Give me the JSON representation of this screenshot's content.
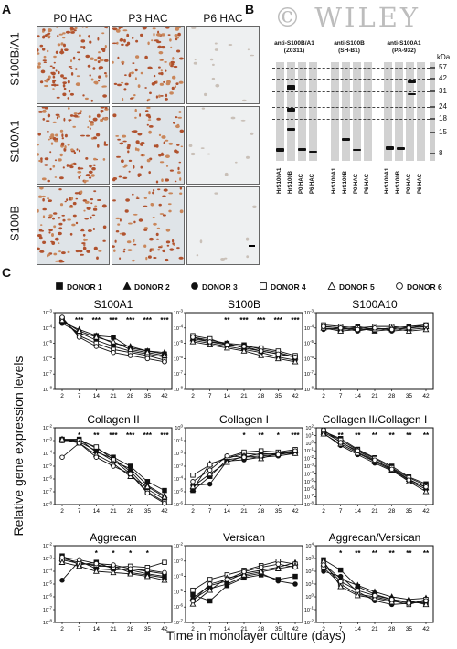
{
  "figure": {
    "panel_a": "A",
    "panel_b": "B",
    "panel_c": "C",
    "watermark": "© WILEY"
  },
  "panel_a": {
    "columns": [
      "P0 HAC",
      "P3 HAC",
      "P6 HAC"
    ],
    "rows": [
      "S100B/A1",
      "S100A1",
      "S100B"
    ],
    "stain_density": [
      [
        0.9,
        0.8,
        0.1
      ],
      [
        0.85,
        0.6,
        0.08
      ],
      [
        0.7,
        0.55,
        0.06
      ]
    ]
  },
  "panel_b": {
    "antibodies": [
      {
        "name": "anti-S100B/A1",
        "clone": "(Z0311)",
        "lanes": [
          "HrS100A1",
          "HrS100B",
          "P0 HAC",
          "P6 HAC"
        ]
      },
      {
        "name": "anti-S100B",
        "clone": "(SH-B1)",
        "lanes": [
          "HrS100A1",
          "HrS100B",
          "P0 HAC",
          "P6 HAC"
        ]
      },
      {
        "name": "anti-S100A1",
        "clone": "(PA-932)",
        "lanes": [
          "HrS100A1",
          "HrS100B",
          "P0 HAC",
          "P6 HAC"
        ]
      }
    ],
    "kda_label": "kDa",
    "markers": [
      "57",
      "42",
      "31",
      "24",
      "18",
      "15",
      "8"
    ]
  },
  "panel_c": {
    "ylabel": "Relative gene expression levels",
    "xlabel": "Time in monolayer culture (days)",
    "legend": [
      "DONOR 1",
      "DONOR 2",
      "DONOR 3",
      "DONOR 4",
      "DONOR 5",
      "DONOR 6"
    ]
  },
  "chart_data": [
    {
      "type": "line",
      "title": "S100A1",
      "x": [
        2,
        7,
        14,
        21,
        28,
        35,
        42
      ],
      "ylim_exp": [
        -8,
        -3
      ],
      "series": [
        {
          "name": "DONOR 1",
          "values": [
            -3.5,
            -4.4,
            -4.5,
            -4.6,
            -5.3,
            -5.5,
            -5.7
          ]
        },
        {
          "name": "DONOR 2",
          "values": [
            -3.6,
            -4.1,
            -4.5,
            -5.0,
            -5.2,
            -5.5,
            -5.6
          ]
        },
        {
          "name": "DONOR 3",
          "values": [
            -3.7,
            -4.3,
            -4.8,
            -5.2,
            -5.5,
            -5.7,
            -5.9
          ]
        },
        {
          "name": "DONOR 4",
          "values": [
            -3.4,
            -4.5,
            -5.0,
            -5.4,
            -5.6,
            -5.8,
            -6.1
          ]
        },
        {
          "name": "DONOR 5",
          "values": [
            -3.5,
            -4.2,
            -4.6,
            -4.9,
            -5.4,
            -5.6,
            -5.8
          ]
        },
        {
          "name": "DONOR 6",
          "values": [
            -3.3,
            -4.6,
            -5.2,
            -5.6,
            -5.8,
            -6.0,
            -6.2
          ]
        }
      ],
      "stars": [
        "",
        "***",
        "***",
        "***",
        "***",
        "***",
        "***"
      ]
    },
    {
      "type": "line",
      "title": "S100B",
      "x": [
        2,
        7,
        14,
        21,
        28,
        35,
        42
      ],
      "ylim_exp": [
        -8,
        -3
      ],
      "series": [
        {
          "name": "DONOR 1",
          "values": [
            -4.6,
            -4.8,
            -5.0,
            -5.1,
            -5.4,
            -5.6,
            -5.9
          ]
        },
        {
          "name": "DONOR 2",
          "values": [
            -4.7,
            -4.9,
            -5.0,
            -5.3,
            -5.5,
            -5.7,
            -5.9
          ]
        },
        {
          "name": "DONOR 3",
          "values": [
            -4.8,
            -5.0,
            -5.2,
            -5.4,
            -5.6,
            -5.9,
            -6.1
          ]
        },
        {
          "name": "DONOR 4",
          "values": [
            -4.5,
            -4.7,
            -5.1,
            -5.2,
            -5.3,
            -5.5,
            -5.8
          ]
        },
        {
          "name": "DONOR 5",
          "values": [
            -4.9,
            -5.1,
            -5.3,
            -5.5,
            -5.8,
            -6.0,
            -6.2
          ]
        },
        {
          "name": "DONOR 6",
          "values": [
            -4.6,
            -4.9,
            -5.1,
            -5.2,
            -5.5,
            -5.7,
            -5.9
          ]
        }
      ],
      "stars": [
        "",
        "",
        "**",
        "***",
        "***",
        "***",
        "***"
      ]
    },
    {
      "type": "line",
      "title": "S100A10",
      "x": [
        2,
        7,
        14,
        21,
        28,
        35,
        42
      ],
      "ylim_exp": [
        -8,
        -3
      ],
      "series": [
        {
          "name": "DONOR 1",
          "values": [
            -3.9,
            -4.0,
            -3.9,
            -4.1,
            -4.0,
            -3.9,
            -3.8
          ]
        },
        {
          "name": "DONOR 2",
          "values": [
            -4.0,
            -4.1,
            -4.0,
            -4.2,
            -4.1,
            -4.0,
            -3.9
          ]
        },
        {
          "name": "DONOR 3",
          "values": [
            -4.1,
            -4.0,
            -4.2,
            -4.0,
            -4.2,
            -4.1,
            -4.0
          ]
        },
        {
          "name": "DONOR 4",
          "values": [
            -3.8,
            -3.9,
            -4.0,
            -3.9,
            -3.9,
            -4.0,
            -3.9
          ]
        },
        {
          "name": "DONOR 5",
          "values": [
            -4.0,
            -4.2,
            -4.1,
            -4.1,
            -4.0,
            -4.2,
            -4.1
          ]
        },
        {
          "name": "DONOR 6",
          "values": [
            -3.9,
            -4.0,
            -4.1,
            -4.0,
            -4.1,
            -4.0,
            -3.8
          ]
        }
      ],
      "stars": [
        "",
        "",
        "",
        "",
        "",
        "",
        ""
      ]
    },
    {
      "type": "line",
      "title": "Collagen II",
      "x": [
        2,
        7,
        14,
        21,
        28,
        35,
        42
      ],
      "ylim_exp": [
        -8,
        -2
      ],
      "series": [
        {
          "name": "DONOR 1",
          "values": [
            -2.9,
            -2.9,
            -3.6,
            -4.3,
            -5.0,
            -6.2,
            -6.9
          ]
        },
        {
          "name": "DONOR 2",
          "values": [
            -2.9,
            -3.1,
            -3.8,
            -4.6,
            -5.2,
            -6.5,
            -7.3
          ]
        },
        {
          "name": "DONOR 3",
          "values": [
            -3.0,
            -2.9,
            -3.9,
            -4.4,
            -5.4,
            -6.8,
            -7.6
          ]
        },
        {
          "name": "DONOR 4",
          "values": [
            -3.0,
            -3.0,
            -3.5,
            -4.5,
            -5.6,
            -7.0,
            -7.8
          ]
        },
        {
          "name": "DONOR 5",
          "values": [
            -2.9,
            -3.2,
            -4.1,
            -4.8,
            -5.8,
            -6.6,
            -7.4
          ]
        },
        {
          "name": "DONOR 6",
          "values": [
            -4.3,
            -3.2,
            -4.3,
            -5.0,
            -5.6,
            -7.1,
            -7.9
          ]
        }
      ],
      "stars": [
        "",
        "*",
        "**",
        "***",
        "***",
        "***",
        "***"
      ]
    },
    {
      "type": "line",
      "title": "Collagen I",
      "x": [
        2,
        7,
        14,
        21,
        28,
        35,
        42
      ],
      "ylim_exp": [
        -6,
        0
      ],
      "series": [
        {
          "name": "DONOR 1",
          "values": [
            -4.9,
            -3.8,
            -2.5,
            -2.3,
            -2.0,
            -2.1,
            -1.9
          ]
        },
        {
          "name": "DONOR 2",
          "values": [
            -4.8,
            -2.8,
            -2.4,
            -2.0,
            -2.1,
            -2.0,
            -1.8
          ]
        },
        {
          "name": "DONOR 3",
          "values": [
            -4.5,
            -4.4,
            -2.6,
            -2.5,
            -2.3,
            -2.2,
            -2.0
          ]
        },
        {
          "name": "DONOR 4",
          "values": [
            -3.7,
            -2.9,
            -2.3,
            -1.9,
            -1.8,
            -1.9,
            -1.7
          ]
        },
        {
          "name": "DONOR 5",
          "values": [
            -4.6,
            -3.6,
            -2.7,
            -2.2,
            -2.4,
            -2.0,
            -2.0
          ]
        },
        {
          "name": "DONOR 6",
          "values": [
            -4.2,
            -3.3,
            -2.2,
            -2.3,
            -2.2,
            -2.1,
            -1.8
          ]
        }
      ],
      "stars": [
        "",
        "",
        "",
        "*",
        "**",
        "*",
        "***"
      ]
    },
    {
      "type": "line",
      "title": "Collagen II/Collagen I",
      "x": [
        2,
        7,
        14,
        21,
        28,
        35,
        42
      ],
      "ylim_exp": [
        -8,
        2
      ],
      "series": [
        {
          "name": "DONOR 1",
          "values": [
            1.5,
            0.6,
            -0.8,
            -1.9,
            -3.0,
            -4.4,
            -5.3
          ]
        },
        {
          "name": "DONOR 2",
          "values": [
            1.4,
            0.2,
            -1.2,
            -2.3,
            -3.3,
            -4.7,
            -5.8
          ]
        },
        {
          "name": "DONOR 3",
          "values": [
            1.3,
            -0.3,
            -1.5,
            -2.6,
            -3.6,
            -4.9,
            -6.0
          ]
        },
        {
          "name": "DONOR 4",
          "values": [
            1.6,
            0.4,
            -0.9,
            -2.0,
            -3.2,
            -4.5,
            -5.5
          ]
        },
        {
          "name": "DONOR 5",
          "values": [
            1.2,
            -0.1,
            -1.3,
            -2.4,
            -3.5,
            -5.0,
            -6.3
          ]
        },
        {
          "name": "DONOR 6",
          "values": [
            1.7,
            0.1,
            -1.0,
            -2.2,
            -3.4,
            -4.8,
            -5.7
          ]
        }
      ],
      "stars": [
        "",
        "**",
        "**",
        "**",
        "**",
        "**",
        "**"
      ]
    },
    {
      "type": "line",
      "title": "Aggrecan",
      "x": [
        2,
        7,
        14,
        21,
        28,
        35,
        42
      ],
      "ylim_exp": [
        -8,
        -2
      ],
      "series": [
        {
          "name": "DONOR 1",
          "values": [
            -2.8,
            -3.5,
            -3.3,
            -3.8,
            -3.9,
            -4.2,
            -4.4
          ]
        },
        {
          "name": "DONOR 2",
          "values": [
            -3.0,
            -3.3,
            -3.6,
            -3.6,
            -4.1,
            -4.3,
            -4.5
          ]
        },
        {
          "name": "DONOR 3",
          "values": [
            -4.7,
            -3.2,
            -3.8,
            -3.9,
            -3.8,
            -4.0,
            -4.2
          ]
        },
        {
          "name": "DONOR 4",
          "values": [
            -3.1,
            -3.4,
            -3.5,
            -3.7,
            -3.6,
            -3.7,
            -3.3
          ]
        },
        {
          "name": "DONOR 5",
          "values": [
            -3.3,
            -3.6,
            -4.0,
            -4.1,
            -4.2,
            -4.4,
            -4.7
          ]
        },
        {
          "name": "DONOR 6",
          "values": [
            -2.9,
            -3.1,
            -3.4,
            -3.5,
            -3.8,
            -3.9,
            -4.1
          ]
        }
      ],
      "stars": [
        "",
        "",
        "*",
        "*",
        "*",
        "*",
        ""
      ]
    },
    {
      "type": "line",
      "title": "Versican",
      "x": [
        2,
        7,
        14,
        21,
        28,
        35,
        42
      ],
      "ylim_exp": [
        -7,
        -2
      ],
      "series": [
        {
          "name": "DONOR 1",
          "values": [
            -5.2,
            -5.6,
            -4.6,
            -4.1,
            -3.9,
            -4.2,
            -4.0
          ]
        },
        {
          "name": "DONOR 2",
          "values": [
            -5.4,
            -4.6,
            -4.3,
            -3.8,
            -3.6,
            -3.4,
            -3.1
          ]
        },
        {
          "name": "DONOR 3",
          "values": [
            -5.5,
            -4.8,
            -4.5,
            -4.0,
            -3.8,
            -4.3,
            -4.5
          ]
        },
        {
          "name": "DONOR 4",
          "values": [
            -4.9,
            -4.2,
            -3.9,
            -3.6,
            -3.3,
            -3.0,
            -3.2
          ]
        },
        {
          "name": "DONOR 5",
          "values": [
            -5.8,
            -4.9,
            -4.1,
            -3.9,
            -3.7,
            -3.5,
            -3.3
          ]
        },
        {
          "name": "DONOR 6",
          "values": [
            -5.6,
            -4.5,
            -4.2,
            -3.7,
            -3.4,
            -3.2,
            -3.4
          ]
        }
      ],
      "stars": [
        "",
        "",
        "",
        "",
        "",
        "",
        ""
      ]
    },
    {
      "type": "line",
      "title": "Aggrecan/Versican",
      "x": [
        2,
        7,
        14,
        21,
        28,
        35,
        42
      ],
      "ylim_exp": [
        -2,
        4
      ],
      "series": [
        {
          "name": "DONOR 1",
          "values": [
            2.9,
            2.1,
            0.8,
            0.2,
            -0.2,
            -0.4,
            -0.5
          ]
        },
        {
          "name": "DONOR 2",
          "values": [
            2.6,
            1.4,
            0.9,
            0.4,
            0.0,
            -0.2,
            -0.1
          ]
        },
        {
          "name": "DONOR 3",
          "values": [
            2.0,
            1.6,
            0.4,
            -0.3,
            -0.6,
            -0.5,
            -0.4
          ]
        },
        {
          "name": "DONOR 4",
          "values": [
            2.3,
            1.0,
            0.2,
            0.0,
            -0.3,
            -0.6,
            -0.2
          ]
        },
        {
          "name": "DONOR 5",
          "values": [
            2.8,
            0.8,
            0.1,
            -0.1,
            -0.4,
            -0.3,
            -0.6
          ]
        },
        {
          "name": "DONOR 6",
          "values": [
            2.5,
            1.2,
            0.5,
            0.1,
            -0.2,
            -0.5,
            -0.3
          ]
        }
      ],
      "stars": [
        "",
        "*",
        "**",
        "**",
        "**",
        "**",
        "**"
      ]
    }
  ]
}
